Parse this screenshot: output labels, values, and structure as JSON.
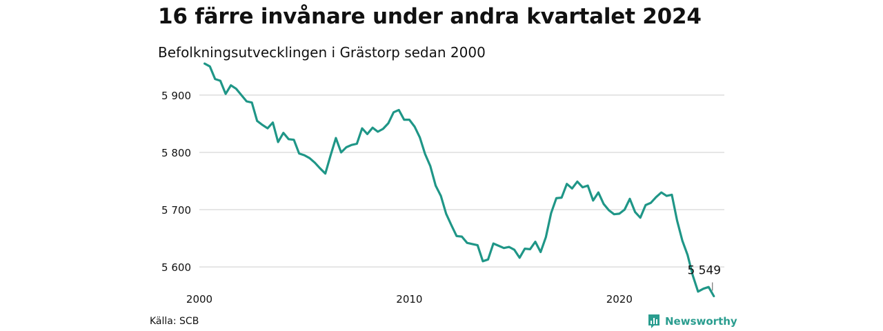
{
  "header": {
    "title": "16 färre invånare under andra kvartalet 2024",
    "subtitle": "Befolkningsutvecklingen i Grästorp sedan 2000"
  },
  "footer": {
    "source": "Källa: SCB",
    "brand": "Newsworthy",
    "brand_icon": "bar-chart-speech-bubble-icon"
  },
  "colors": {
    "line": "#1f9687",
    "grid": "#dddddd",
    "text": "#111111",
    "brand": "#2a9d8f"
  },
  "chart_data": {
    "type": "line",
    "x_unit": "quarter",
    "xlim": [
      2000,
      2025
    ],
    "ylim": [
      5540,
      5960
    ],
    "yticks": [
      5600,
      5700,
      5800,
      5900
    ],
    "ytick_labels": [
      "5 600",
      "5 700",
      "5 800",
      "5 900"
    ],
    "xticks": [
      2000,
      2010,
      2020
    ],
    "xtick_labels": [
      "2000",
      "2010",
      "2020"
    ],
    "grid": "horizontal",
    "end_label": "5 549",
    "series": [
      {
        "x": [
          2000.25,
          2000.5,
          2000.75,
          2001,
          2001.25,
          2001.5,
          2001.75,
          2002,
          2002.25,
          2002.5,
          2002.75,
          2003,
          2003.25,
          2003.5,
          2003.75,
          2004,
          2004.25,
          2004.5,
          2004.75,
          2005,
          2005.25,
          2005.5,
          2005.75,
          2006,
          2006.25,
          2006.5,
          2006.75,
          2007,
          2007.25,
          2007.5,
          2007.75,
          2008,
          2008.25,
          2008.5,
          2008.75,
          2009,
          2009.25,
          2009.5,
          2009.75,
          2010,
          2010.25,
          2010.5,
          2010.75,
          2011,
          2011.25,
          2011.5,
          2011.75,
          2012,
          2012.25,
          2012.5,
          2012.75,
          2013,
          2013.25,
          2013.5,
          2013.75,
          2014,
          2014.25,
          2014.5,
          2014.75,
          2015,
          2015.25,
          2015.5,
          2015.75,
          2016,
          2016.25,
          2016.5,
          2016.75,
          2017,
          2017.25,
          2017.5,
          2017.75,
          2018,
          2018.25,
          2018.5,
          2018.75,
          2019,
          2019.25,
          2019.5,
          2019.75,
          2020,
          2020.25,
          2020.5,
          2020.75,
          2021,
          2021.25,
          2021.5,
          2021.75,
          2022,
          2022.25,
          2022.5,
          2022.75,
          2023,
          2023.25,
          2023.5,
          2023.75,
          2024,
          2024.25,
          2024.5
        ],
        "values": [
          5955,
          5950,
          5928,
          5925,
          5902,
          5917,
          5911,
          5900,
          5889,
          5887,
          5855,
          5848,
          5842,
          5852,
          5818,
          5834,
          5823,
          5822,
          5798,
          5795,
          5790,
          5782,
          5772,
          5763,
          5795,
          5825,
          5800,
          5809,
          5813,
          5815,
          5842,
          5832,
          5843,
          5836,
          5841,
          5851,
          5870,
          5874,
          5857,
          5857,
          5845,
          5826,
          5797,
          5776,
          5742,
          5724,
          5693,
          5673,
          5654,
          5653,
          5642,
          5640,
          5638,
          5610,
          5613,
          5641,
          5637,
          5633,
          5635,
          5630,
          5616,
          5632,
          5631,
          5644,
          5626,
          5652,
          5694,
          5720,
          5721,
          5745,
          5737,
          5749,
          5739,
          5742,
          5716,
          5730,
          5710,
          5699,
          5692,
          5693,
          5700,
          5719,
          5696,
          5686,
          5708,
          5712,
          5722,
          5730,
          5724,
          5726,
          5681,
          5646,
          5621,
          5585,
          5557,
          5562,
          5565,
          5549
        ]
      }
    ]
  }
}
